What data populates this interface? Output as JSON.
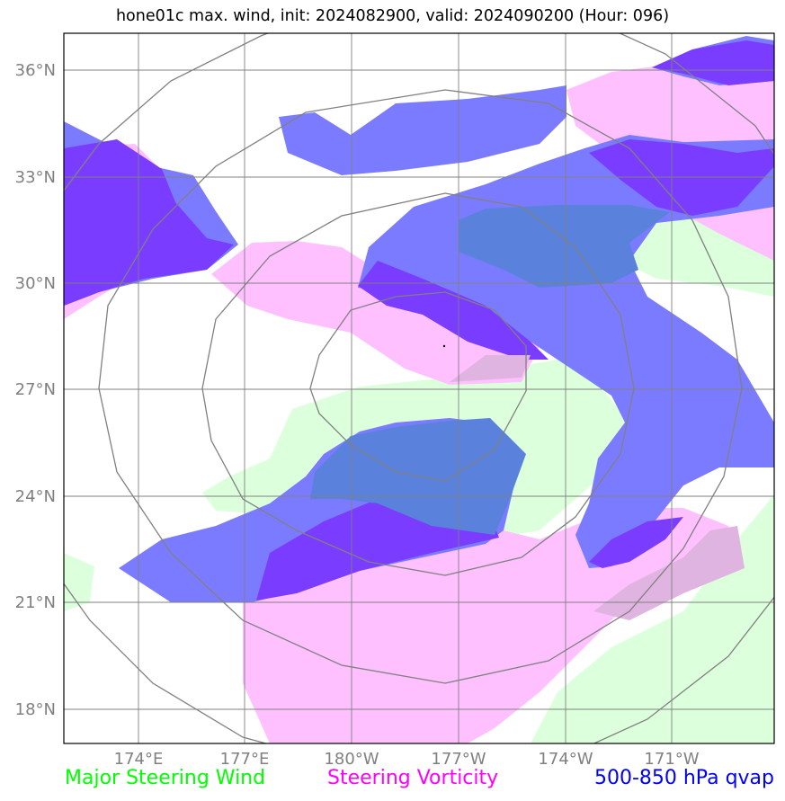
{
  "title": "hone01c max. wind, init: 2024082900, valid: 2024090200 (Hour: 096)",
  "map": {
    "lat_labels": [
      "36°N",
      "33°N",
      "30°N",
      "27°N",
      "24°N",
      "21°N",
      "18°N"
    ],
    "lon_labels": [
      "174°E",
      "177°E",
      "180°W",
      "177°W",
      "174°W",
      "171°W"
    ]
  },
  "legend": {
    "wind": {
      "label": "Major Steering Wind",
      "color": "#00ff00"
    },
    "vorticity": {
      "label": "Steering Vorticity",
      "color": "#ff00ff"
    },
    "qvap": {
      "label": "500-850 hPa qvap",
      "color": "#0000ff"
    }
  },
  "colors": {
    "wind_fill": "#dcffdc",
    "vorticity_fill": "#ffc0ff",
    "qvap_fill": "#7b7bff",
    "qvap_dark_fill": "#7a3cff",
    "overlap_fill": "#5a82dc",
    "grid": "#808080"
  }
}
